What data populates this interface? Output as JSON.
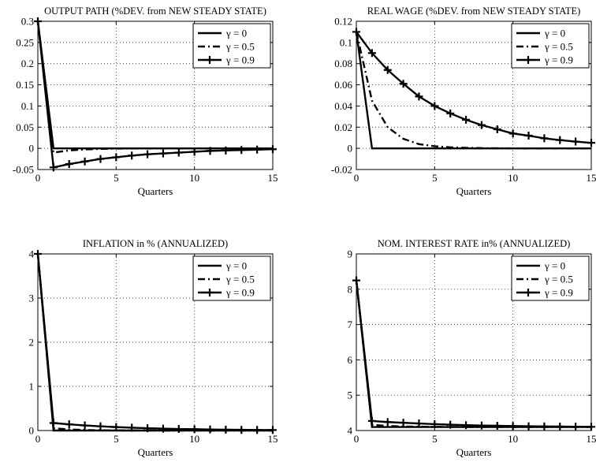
{
  "chart_data": [
    {
      "type": "line",
      "title": "OUTPUT PATH (%DEV. from NEW STEADY STATE)",
      "xlabel": "Quarters",
      "ylabel": "",
      "xlim": [
        0,
        15
      ],
      "ylim": [
        -0.05,
        0.3
      ],
      "xticks": [
        0,
        5,
        10,
        15
      ],
      "yticks": [
        -0.05,
        0,
        0.05,
        0.1,
        0.15,
        0.2,
        0.25,
        0.3
      ],
      "ytick_labels": [
        "-0.05",
        "0",
        "0.05",
        "0.1",
        "0.15",
        "0.2",
        "0.25",
        "0.3"
      ],
      "grid": true,
      "legend_position": "top-right",
      "x": [
        0,
        1,
        2,
        3,
        4,
        5,
        6,
        7,
        8,
        9,
        10,
        11,
        12,
        13,
        14,
        15
      ],
      "series": [
        {
          "name": "γ = 0",
          "style": "solid",
          "values": [
            0.3,
            0,
            0,
            0,
            0,
            0,
            0,
            0,
            0,
            0,
            0,
            0,
            0,
            0,
            0,
            0
          ]
        },
        {
          "name": "γ = 0.5",
          "style": "dashdot",
          "values": [
            0.3,
            -0.01,
            -0.005,
            -0.0025,
            -0.0012,
            -0.0006,
            -0.0003,
            -0.0002,
            -0.0001,
            0,
            0,
            0,
            0,
            0,
            0,
            0
          ]
        },
        {
          "name": "γ = 0.9",
          "style": "plus",
          "values": [
            0.3,
            -0.045,
            -0.037,
            -0.031,
            -0.025,
            -0.021,
            -0.017,
            -0.014,
            -0.012,
            -0.01,
            -0.008,
            -0.006,
            -0.005,
            -0.004,
            -0.003,
            -0.002
          ]
        }
      ]
    },
    {
      "type": "line",
      "title": "REAL WAGE (%DEV. from NEW STEADY STATE)",
      "xlabel": "Quarters",
      "ylabel": "",
      "xlim": [
        0,
        15
      ],
      "ylim": [
        -0.02,
        0.12
      ],
      "xticks": [
        0,
        5,
        10,
        15
      ],
      "yticks": [
        -0.02,
        0,
        0.02,
        0.04,
        0.06,
        0.08,
        0.1,
        0.12
      ],
      "ytick_labels": [
        "-0.02",
        "0",
        "0.02",
        "0.04",
        "0.06",
        "0.08",
        "0.1",
        "0.12"
      ],
      "grid": true,
      "legend_position": "top-right",
      "x": [
        0,
        1,
        2,
        3,
        4,
        5,
        6,
        7,
        8,
        9,
        10,
        11,
        12,
        13,
        14,
        15
      ],
      "series": [
        {
          "name": "γ = 0",
          "style": "solid",
          "values": [
            0.11,
            0,
            0,
            0,
            0,
            0,
            0,
            0,
            0,
            0,
            0,
            0,
            0,
            0,
            0,
            0
          ]
        },
        {
          "name": "γ = 0.5",
          "style": "dashdot",
          "values": [
            0.11,
            0.045,
            0.02,
            0.009,
            0.004,
            0.002,
            0.001,
            0.0005,
            0.0002,
            0.0001,
            0,
            0,
            0,
            0,
            0,
            0
          ]
        },
        {
          "name": "γ = 0.9",
          "style": "plus",
          "values": [
            0.11,
            0.09,
            0.074,
            0.061,
            0.049,
            0.04,
            0.033,
            0.027,
            0.022,
            0.018,
            0.014,
            0.012,
            0.0095,
            0.0078,
            0.0064,
            0.0052
          ]
        }
      ]
    },
    {
      "type": "line",
      "title": "INFLATION in % (ANNUALIZED)",
      "xlabel": "Quarters",
      "ylabel": "",
      "xlim": [
        0,
        15
      ],
      "ylim": [
        0,
        4
      ],
      "xticks": [
        0,
        5,
        10,
        15
      ],
      "yticks": [
        0,
        1,
        2,
        3,
        4
      ],
      "ytick_labels": [
        "0",
        "1",
        "2",
        "3",
        "4"
      ],
      "grid": true,
      "legend_position": "top-right",
      "x": [
        0,
        1,
        2,
        3,
        4,
        5,
        6,
        7,
        8,
        9,
        10,
        11,
        12,
        13,
        14,
        15
      ],
      "series": [
        {
          "name": "γ = 0",
          "style": "solid",
          "values": [
            4,
            0,
            0,
            0,
            0,
            0,
            0,
            0,
            0,
            0,
            0,
            0,
            0,
            0,
            0,
            0
          ]
        },
        {
          "name": "γ = 0.5",
          "style": "dashdot",
          "values": [
            4,
            0.05,
            0.025,
            0.012,
            0.006,
            0.003,
            0.002,
            0.001,
            0,
            0,
            0,
            0,
            0,
            0,
            0,
            0
          ]
        },
        {
          "name": "γ = 0.9",
          "style": "plus",
          "values": [
            4,
            0.17,
            0.14,
            0.115,
            0.095,
            0.078,
            0.064,
            0.052,
            0.043,
            0.035,
            0.029,
            0.024,
            0.019,
            0.016,
            0.013,
            0.011
          ]
        }
      ]
    },
    {
      "type": "line",
      "title": "NOM. INTEREST RATE in% (ANNUALIZED)",
      "xlabel": "Quarters",
      "ylabel": "",
      "xlim": [
        0,
        15
      ],
      "ylim": [
        4,
        9
      ],
      "xticks": [
        0,
        5,
        10,
        15
      ],
      "yticks": [
        4,
        5,
        6,
        7,
        8,
        9
      ],
      "ytick_labels": [
        "4",
        "5",
        "6",
        "7",
        "8",
        "9"
      ],
      "grid": true,
      "legend_position": "top-right",
      "x": [
        0,
        1,
        2,
        3,
        4,
        5,
        6,
        7,
        8,
        9,
        10,
        11,
        12,
        13,
        14,
        15
      ],
      "series": [
        {
          "name": "γ = 0",
          "style": "solid",
          "values": [
            8.25,
            4.1,
            4.1,
            4.1,
            4.1,
            4.1,
            4.1,
            4.1,
            4.1,
            4.1,
            4.1,
            4.1,
            4.1,
            4.1,
            4.1,
            4.1
          ]
        },
        {
          "name": "γ = 0.5",
          "style": "dashdot",
          "values": [
            8.25,
            4.16,
            4.13,
            4.115,
            4.108,
            4.104,
            4.102,
            4.101,
            4.1,
            4.1,
            4.1,
            4.1,
            4.1,
            4.1,
            4.1,
            4.1
          ]
        },
        {
          "name": "γ = 0.9",
          "style": "plus",
          "values": [
            8.25,
            4.27,
            4.24,
            4.22,
            4.2,
            4.18,
            4.165,
            4.152,
            4.142,
            4.134,
            4.127,
            4.121,
            4.116,
            4.112,
            4.108,
            4.105
          ]
        }
      ]
    }
  ]
}
